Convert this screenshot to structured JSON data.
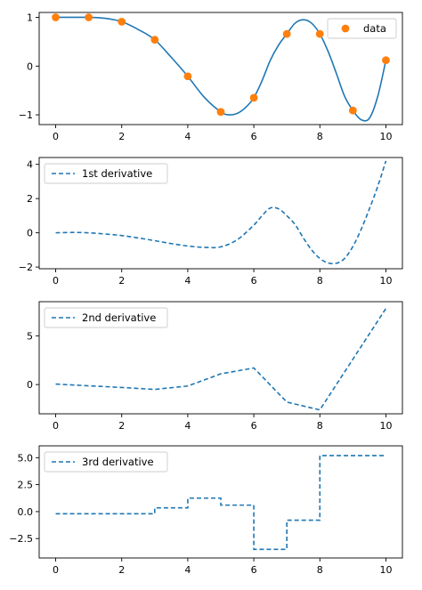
{
  "chart_data": [
    {
      "type": "scatter+line",
      "xlim": [
        -0.5,
        10.5
      ],
      "ylim": [
        -1.2,
        1.1
      ],
      "xticks": [
        0,
        2,
        4,
        6,
        8,
        10
      ],
      "yticks": [
        -1,
        0,
        1
      ],
      "ytick_labels": [
        "−1",
        "0",
        "1"
      ],
      "legend": {
        "placement": "upper-right",
        "entries": [
          {
            "label": "data",
            "marker": "circle",
            "color": "#ff7f0e"
          }
        ]
      },
      "points": {
        "x": [
          0,
          1,
          2,
          3,
          4,
          5,
          6,
          7,
          8,
          9,
          10
        ],
        "y": [
          1.0,
          1.0,
          0.91,
          0.54,
          -0.21,
          -0.94,
          -0.65,
          0.66,
          0.66,
          -0.91,
          0.12
        ],
        "color": "#ff7f0e"
      },
      "curve": {
        "x": [
          0,
          0.5,
          1,
          1.5,
          2,
          2.5,
          3,
          3.5,
          4,
          4.5,
          5,
          5.25,
          5.5,
          5.75,
          6,
          6.25,
          6.5,
          6.75,
          7,
          7.25,
          7.5,
          7.75,
          8,
          8.25,
          8.5,
          8.75,
          9,
          9.25,
          9.5,
          9.75,
          10
        ],
        "y": [
          1.0,
          1.0,
          1.0,
          0.98,
          0.91,
          0.75,
          0.54,
          0.18,
          -0.21,
          -0.64,
          -0.94,
          -1.0,
          -0.97,
          -0.85,
          -0.65,
          -0.3,
          0.12,
          0.43,
          0.66,
          0.88,
          0.95,
          0.88,
          0.66,
          0.3,
          -0.15,
          -0.62,
          -0.91,
          -1.1,
          -1.07,
          -0.63,
          0.12
        ],
        "color": "#1f77b4"
      }
    },
    {
      "type": "line",
      "xlim": [
        -0.5,
        10.5
      ],
      "ylim": [
        -2.1,
        4.4
      ],
      "xticks": [
        0,
        2,
        4,
        6,
        8,
        10
      ],
      "yticks": [
        -2,
        0,
        2,
        4
      ],
      "ytick_labels": [
        "−2",
        "0",
        "2",
        "4"
      ],
      "legend": {
        "placement": "upper-left",
        "entries": [
          {
            "label": "1st derivative",
            "style": "dashed",
            "color": "#1f77b4"
          }
        ]
      },
      "series": [
        {
          "name": "1st derivative",
          "style": "dashed",
          "color": "#1f77b4",
          "x": [
            0,
            0.5,
            1,
            1.5,
            2,
            2.5,
            3,
            3.5,
            4,
            4.5,
            5,
            5.5,
            6,
            6.25,
            6.5,
            6.75,
            7,
            7.25,
            7.5,
            7.75,
            8,
            8.25,
            8.5,
            8.75,
            9,
            9.25,
            9.5,
            9.75,
            10
          ],
          "y": [
            0.0,
            0.02,
            0.0,
            -0.07,
            -0.16,
            -0.3,
            -0.46,
            -0.63,
            -0.77,
            -0.85,
            -0.82,
            -0.4,
            0.45,
            1.0,
            1.45,
            1.4,
            1.0,
            0.48,
            -0.3,
            -1.0,
            -1.5,
            -1.76,
            -1.78,
            -1.5,
            -0.8,
            0.2,
            1.4,
            2.7,
            4.2
          ]
        }
      ]
    },
    {
      "type": "line",
      "xlim": [
        -0.5,
        10.5
      ],
      "ylim": [
        -3.0,
        8.5
      ],
      "xticks": [
        0,
        2,
        4,
        6,
        8,
        10
      ],
      "yticks": [
        0,
        5
      ],
      "ytick_labels": [
        "0",
        "5"
      ],
      "legend": {
        "placement": "upper-left",
        "entries": [
          {
            "label": "2nd derivative",
            "style": "dashed",
            "color": "#1f77b4"
          }
        ]
      },
      "series": [
        {
          "name": "2nd derivative",
          "style": "dashed",
          "color": "#1f77b4",
          "x": [
            0,
            1,
            2,
            3,
            4,
            5,
            6,
            7,
            8,
            9,
            10
          ],
          "y": [
            0.05,
            -0.13,
            -0.3,
            -0.5,
            -0.15,
            1.1,
            1.7,
            -1.8,
            -2.6,
            2.6,
            7.8
          ]
        }
      ]
    },
    {
      "type": "step",
      "xlim": [
        -0.5,
        10.5
      ],
      "ylim": [
        -4.3,
        6.1
      ],
      "xticks": [
        0,
        2,
        4,
        6,
        8,
        10
      ],
      "yticks": [
        -2.5,
        0,
        2.5,
        5
      ],
      "ytick_labels": [
        "−2.5",
        "0.0",
        "2.5",
        "5.0"
      ],
      "legend": {
        "placement": "upper-left",
        "entries": [
          {
            "label": "3rd derivative",
            "style": "dashed",
            "color": "#1f77b4"
          }
        ]
      },
      "series": [
        {
          "name": "3rd derivative",
          "style": "dashed",
          "color": "#1f77b4",
          "x": [
            0,
            1,
            2,
            3,
            4,
            5,
            6,
            7,
            8,
            9,
            10
          ],
          "y": [
            -0.2,
            -0.2,
            -0.2,
            0.35,
            1.25,
            0.6,
            -3.5,
            -0.8,
            5.2,
            5.2,
            5.2
          ]
        }
      ]
    }
  ]
}
